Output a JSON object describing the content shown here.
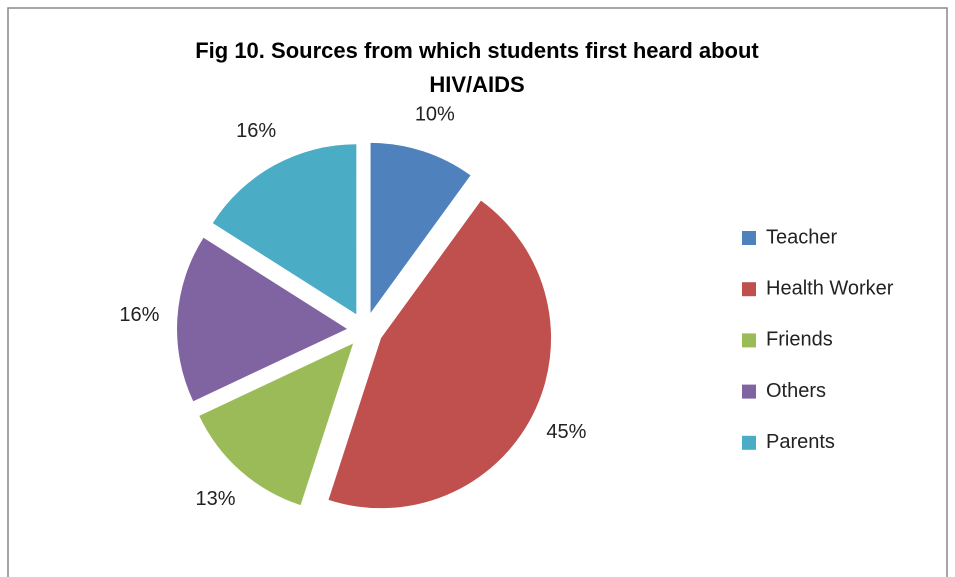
{
  "chart_data": {
    "type": "pie",
    "title": "Fig 10. Sources from which students first heard about HIV/AIDS",
    "categories": [
      "Teacher",
      "Health Worker",
      "Friends",
      "Others",
      "Parents"
    ],
    "values": [
      10,
      45,
      13,
      16,
      16
    ],
    "value_labels": [
      "10%",
      "45%",
      "13%",
      "16%",
      "16%"
    ],
    "colors": [
      "#4f81bd",
      "#c0504d",
      "#9bbb59",
      "#8064a2",
      "#4bacc6"
    ],
    "legend": "right"
  }
}
